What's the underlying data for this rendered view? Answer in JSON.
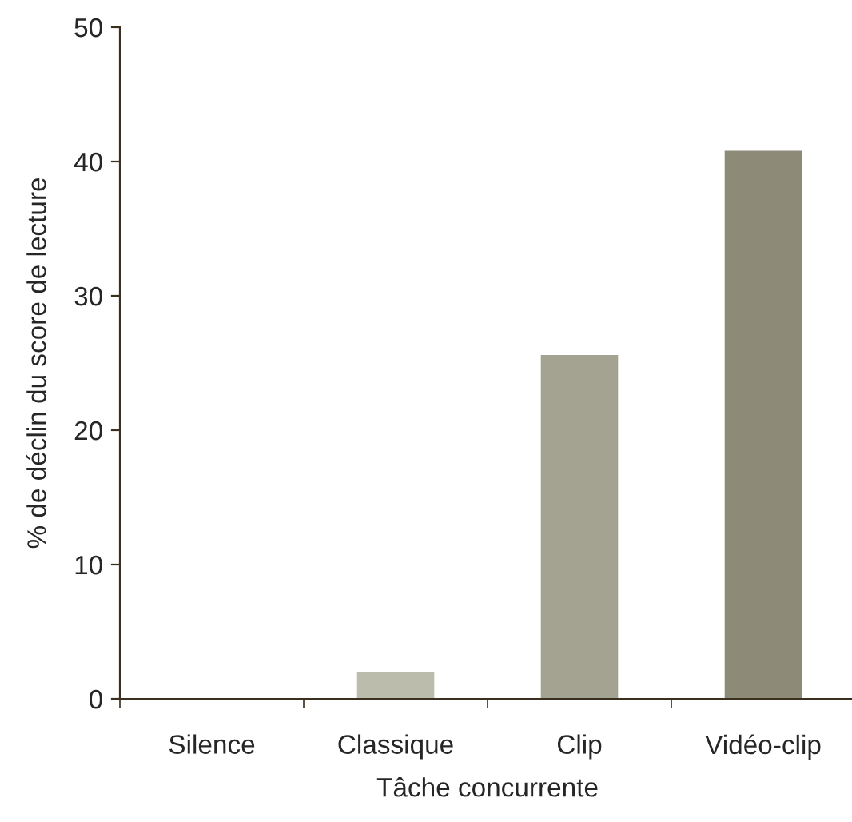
{
  "chart_data": {
    "type": "bar",
    "xlabel": "Tâche concurrente",
    "ylabel": "% de déclin du score de lecture",
    "categories": [
      "Silence",
      "Classique",
      "Clip",
      "Vidéo-clip"
    ],
    "values": [
      0,
      2.0,
      25.6,
      40.8
    ],
    "colors": [
      "#bcbcac",
      "#bcbcac",
      "#a4a290",
      "#8e8a78"
    ],
    "ylim": [
      0,
      50
    ],
    "yticks": [
      0,
      10,
      20,
      30,
      40,
      50
    ],
    "grid": false
  }
}
